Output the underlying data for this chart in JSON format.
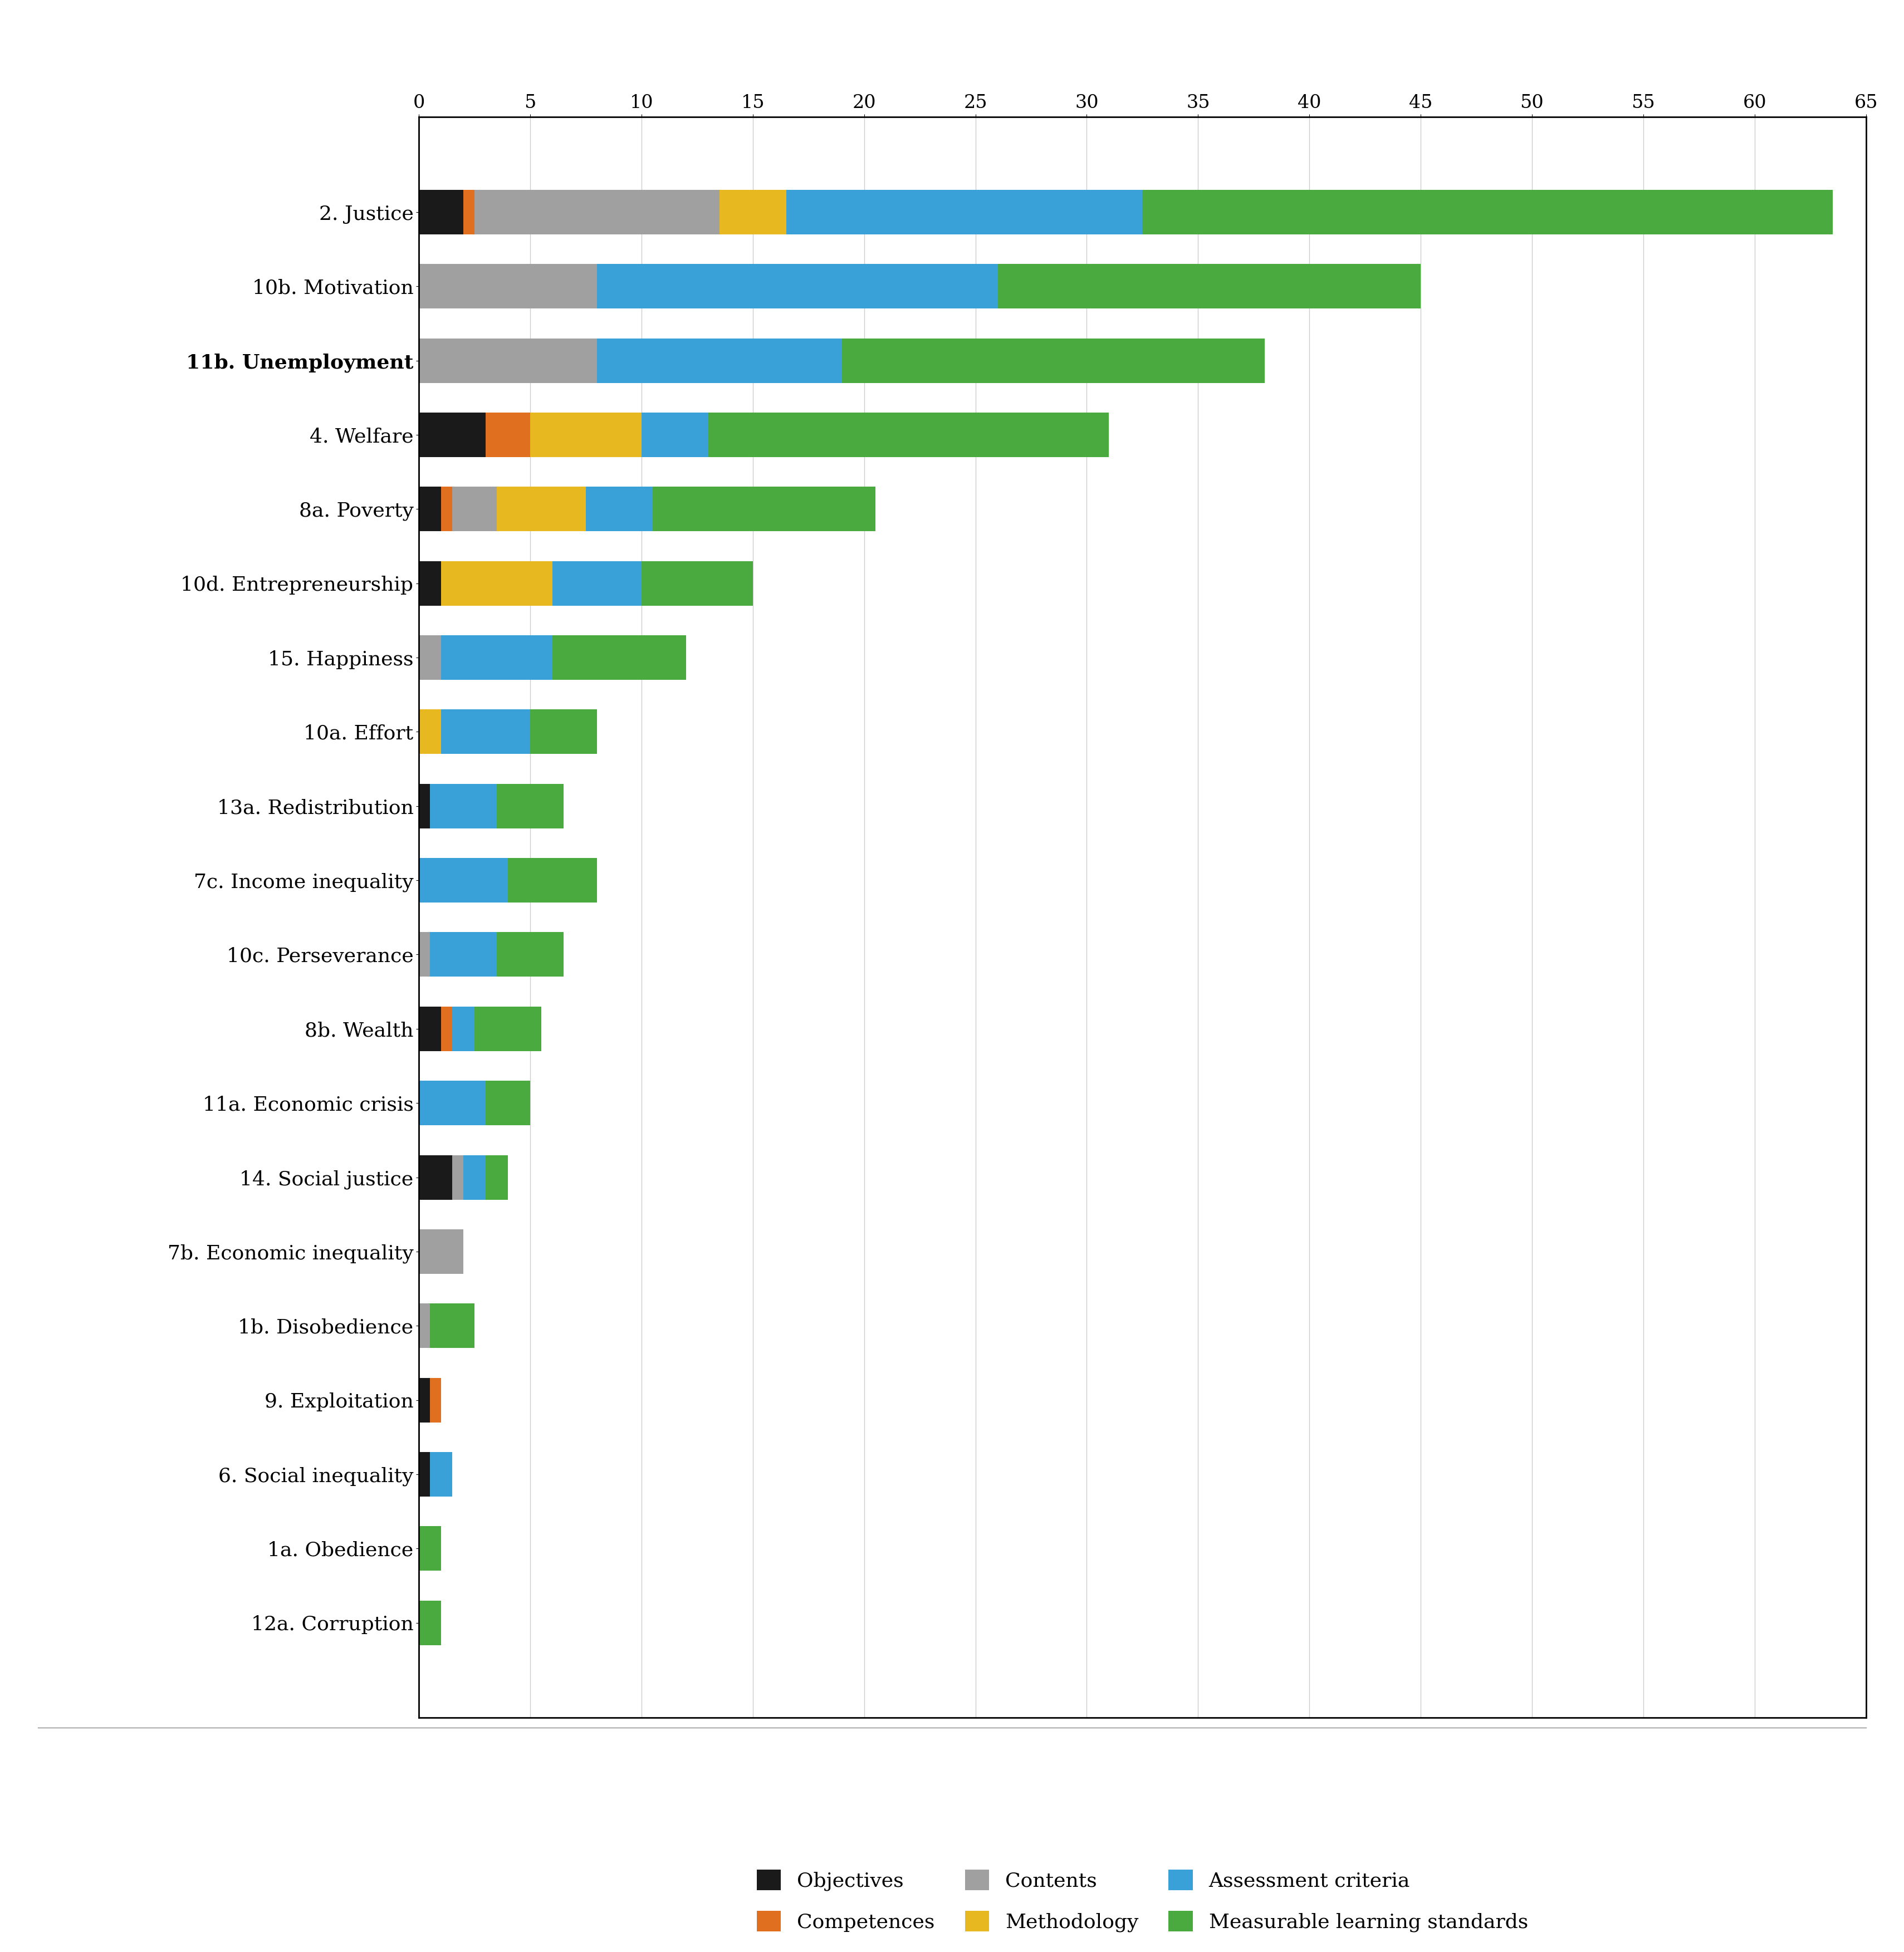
{
  "categories": [
    "2. Justice",
    "10b. Motivation",
    "11b. Unemployment",
    "4. Welfare",
    "8a. Poverty",
    "10d. Entrepreneurship",
    "15. Happiness",
    "10a. Effort",
    "13a. Redistribution",
    "7c. Income inequality",
    "10c. Perseverance",
    "8b. Wealth",
    "11a. Economic crisis",
    "14. Social justice",
    "7b. Economic inequality",
    "1b. Disobedience",
    "9. Exploitation",
    "6. Social inequality",
    "1a. Obedience",
    "12a. Corruption"
  ],
  "series": {
    "Objectives": [
      2,
      0,
      0,
      3,
      1,
      1,
      0,
      0,
      0.5,
      0,
      0,
      1,
      0,
      1.5,
      0,
      0,
      0.5,
      0.5,
      0,
      0
    ],
    "Competences": [
      0.5,
      0,
      0,
      2,
      0.5,
      0,
      0,
      0,
      0,
      0,
      0,
      0.5,
      0,
      0,
      0,
      0,
      0.5,
      0,
      0,
      0
    ],
    "Contents": [
      11,
      8,
      8,
      0,
      2,
      0,
      1,
      0,
      0,
      0,
      0.5,
      0,
      0,
      0.5,
      2,
      0.5,
      0,
      0,
      0,
      0
    ],
    "Methodology": [
      3,
      0,
      0,
      5,
      4,
      5,
      0,
      1,
      0,
      0,
      0,
      0,
      0,
      0,
      0,
      0,
      0,
      0,
      0,
      0
    ],
    "Assessment criteria": [
      16,
      18,
      11,
      3,
      3,
      4,
      5,
      4,
      3,
      4,
      3,
      1,
      3,
      1,
      0,
      0,
      0,
      1,
      0,
      0
    ],
    "Measurable learning standards": [
      31,
      19,
      19,
      18,
      10,
      5,
      6,
      3,
      3,
      4,
      3,
      3,
      2,
      1,
      0,
      2,
      0,
      0,
      1,
      1
    ]
  },
  "colors": {
    "Objectives": "#1a1a1a",
    "Competences": "#e07020",
    "Contents": "#a0a0a0",
    "Methodology": "#e8b820",
    "Assessment criteria": "#3aa0d8",
    "Measurable learning standards": "#4aaa40"
  },
  "xlim": [
    0,
    65
  ],
  "xticks": [
    0,
    5,
    10,
    15,
    20,
    25,
    30,
    35,
    40,
    45,
    50,
    55,
    60,
    65
  ],
  "xtick_labels": [
    "0",
    "5",
    "10",
    "15",
    "20",
    "25",
    "30",
    "35",
    "40",
    "45",
    "50",
    "55",
    "60",
    "65"
  ],
  "background_color": "#ffffff",
  "bar_height": 0.6,
  "fontsize_labels": 26,
  "fontsize_ticks": 24,
  "fontsize_legend": 26,
  "bold_categories": [
    "11b. Unemployment"
  ]
}
